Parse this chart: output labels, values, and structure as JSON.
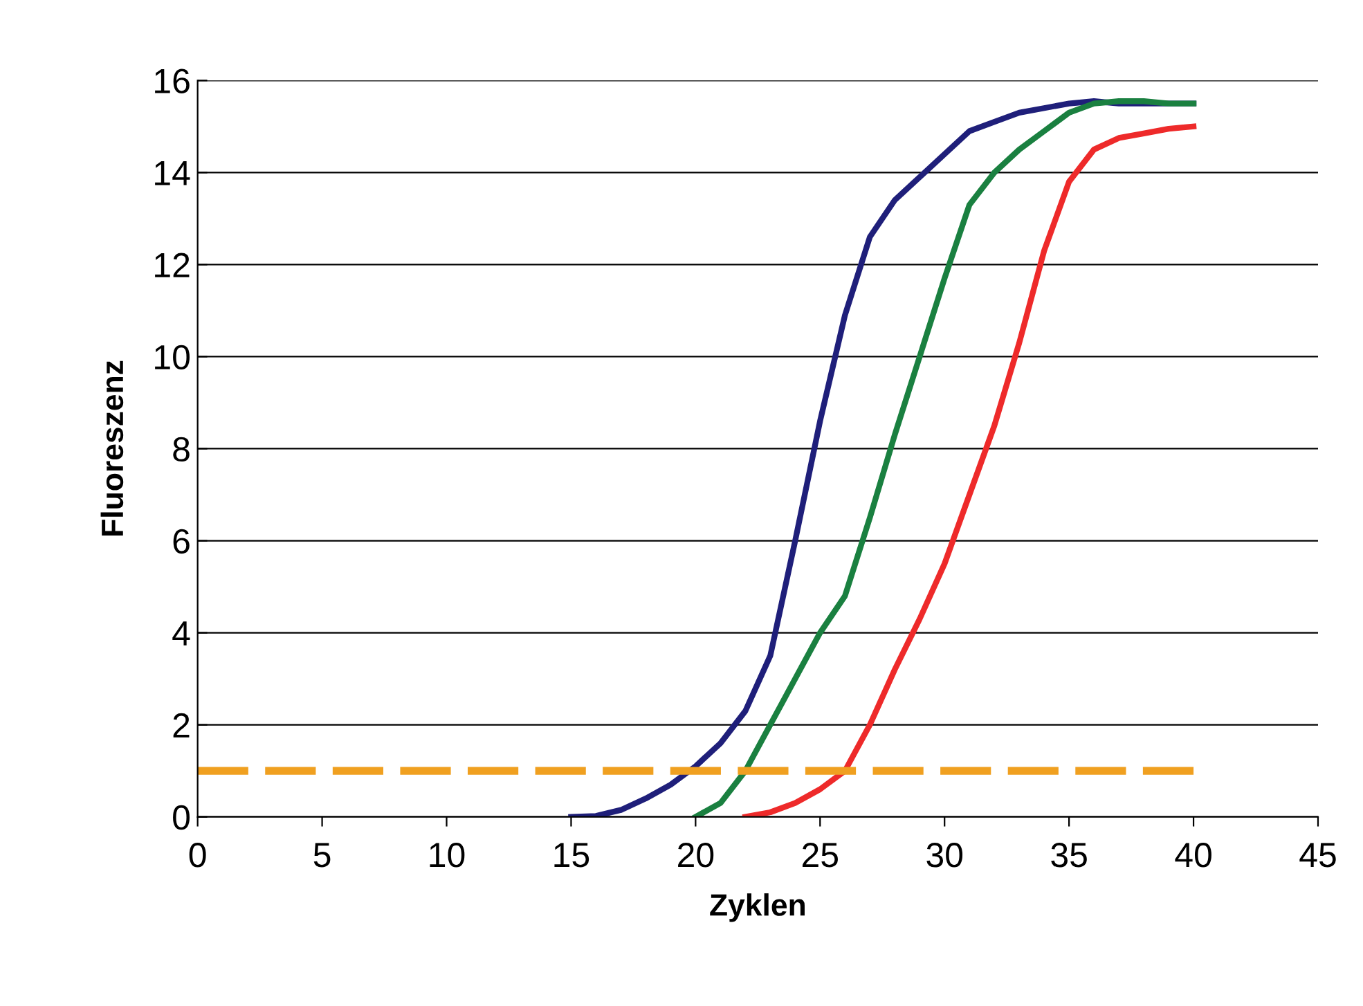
{
  "chart_data": {
    "type": "line",
    "xlabel": "Zyklen",
    "ylabel": "Fluoreszenz",
    "xlim": [
      0,
      45
    ],
    "ylim": [
      0,
      16
    ],
    "xticks": [
      0,
      5,
      10,
      15,
      20,
      25,
      30,
      35,
      40,
      45
    ],
    "yticks": [
      0,
      2,
      4,
      6,
      8,
      10,
      12,
      14,
      16
    ],
    "grid": "y",
    "legend": false,
    "marker": "none",
    "series": [
      {
        "color": "#1f1f7a",
        "x": [
          15,
          16,
          17,
          18,
          19,
          20,
          21,
          22,
          23,
          24,
          25,
          26,
          27,
          28,
          29,
          30,
          31,
          32,
          33,
          34,
          35,
          36,
          37,
          38,
          39,
          40
        ],
        "values": [
          0,
          0.02,
          0.15,
          0.4,
          0.7,
          1.1,
          1.6,
          2.3,
          3.5,
          6,
          8.6,
          10.9,
          12.6,
          13.4,
          13.9,
          14.4,
          14.9,
          15.1,
          15.3,
          15.4,
          15.5,
          15.55,
          15.5,
          15.5,
          15.5,
          15.5
        ]
      },
      {
        "color": "#1a8040",
        "x": [
          20,
          21,
          22,
          23,
          24,
          25,
          26,
          27,
          28,
          29,
          30,
          31,
          32,
          33,
          34,
          35,
          36,
          37,
          38,
          39,
          40
        ],
        "values": [
          0,
          0.3,
          1.0,
          2.0,
          3.0,
          4.0,
          4.8,
          6.5,
          8.3,
          10,
          11.7,
          13.3,
          14.0,
          14.5,
          14.9,
          15.3,
          15.5,
          15.55,
          15.55,
          15.5,
          15.5
        ]
      },
      {
        "color": "#ee2a2a",
        "x": [
          22,
          23,
          24,
          25,
          26,
          27,
          28,
          29,
          30,
          31,
          32,
          33,
          34,
          35,
          36,
          37,
          38,
          39,
          40
        ],
        "values": [
          0,
          0.1,
          0.3,
          0.6,
          1.0,
          2.0,
          3.2,
          4.3,
          5.5,
          7.0,
          8.5,
          10.3,
          12.3,
          13.8,
          14.5,
          14.75,
          14.85,
          14.95,
          15.0
        ]
      },
      {
        "color": "#f0a020",
        "line_style": "dashed",
        "x": [
          0,
          40
        ],
        "values": [
          1,
          1
        ]
      }
    ]
  }
}
